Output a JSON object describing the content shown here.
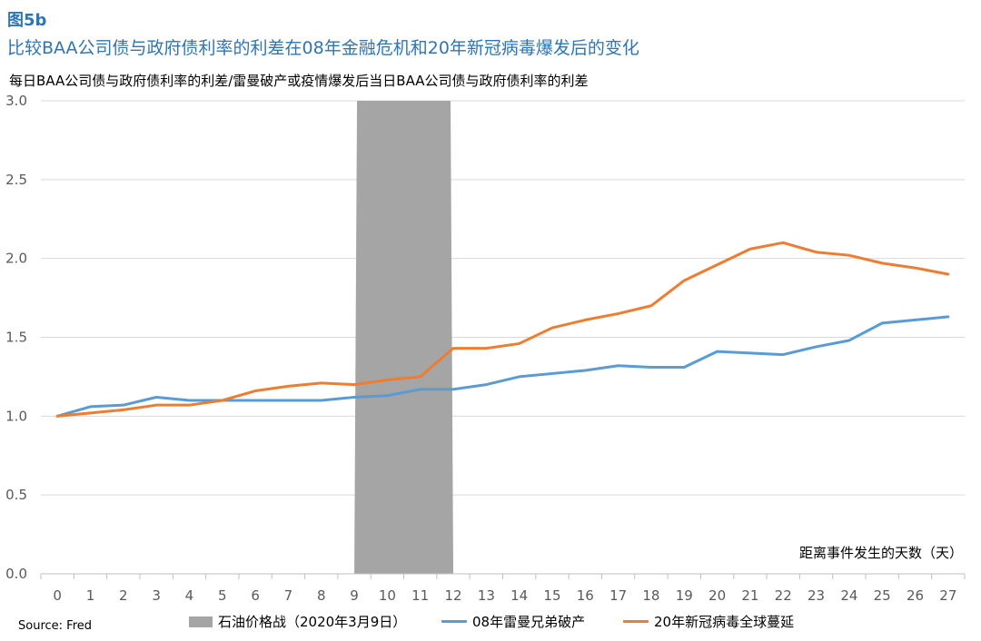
{
  "figure_label": "图5b",
  "figure_title": "比较BAA公司债与政府债利率的利差在08年金融危机和20年新冠病毒爆发后的变化",
  "source": "Source: Fred",
  "chart_data": {
    "type": "line",
    "subtitle": "每日BAA公司债与政府债利率的利差/雷曼破产或疫情爆发后当日BAA公司债与政府债利率的利差",
    "xlabel": "距离事件发生的天数（天）",
    "ylabel": "",
    "ylim": [
      0,
      3.0
    ],
    "yticks": [
      "0.0",
      "0.5",
      "1.0",
      "1.5",
      "2.0",
      "2.5",
      "3.0"
    ],
    "ytick_values": [
      0,
      0.5,
      1.0,
      1.5,
      2.0,
      2.5,
      3.0
    ],
    "x": [
      0,
      1,
      2,
      3,
      4,
      5,
      6,
      7,
      8,
      9,
      10,
      11,
      12,
      13,
      14,
      15,
      16,
      17,
      18,
      19,
      20,
      21,
      22,
      23,
      24,
      25,
      26,
      27
    ],
    "grid": "horizontal",
    "legend_position": "bottom",
    "shaded_region": {
      "name": "石油价格战（2020年3月9日）",
      "from_day": 9,
      "to_day": 12,
      "color": "#a5a5a5"
    },
    "series": [
      {
        "name": "08年雷曼兄弟破产",
        "color": "#5b9bd5",
        "values": [
          1.0,
          1.06,
          1.07,
          1.12,
          1.1,
          1.1,
          1.1,
          1.1,
          1.1,
          1.12,
          1.13,
          1.17,
          1.17,
          1.2,
          1.25,
          1.27,
          1.29,
          1.32,
          1.31,
          1.31,
          1.41,
          1.4,
          1.39,
          1.44,
          1.48,
          1.59,
          1.61,
          1.63
        ]
      },
      {
        "name": "20年新冠病毒全球蔓延",
        "color": "#ed7d31",
        "values": [
          1.0,
          1.02,
          1.04,
          1.07,
          1.07,
          1.1,
          1.16,
          1.19,
          1.21,
          1.2,
          1.23,
          1.25,
          1.43,
          1.43,
          1.46,
          1.56,
          1.61,
          1.65,
          1.7,
          1.86,
          1.96,
          2.06,
          2.1,
          2.04,
          2.02,
          1.97,
          1.94,
          1.9
        ]
      }
    ]
  }
}
